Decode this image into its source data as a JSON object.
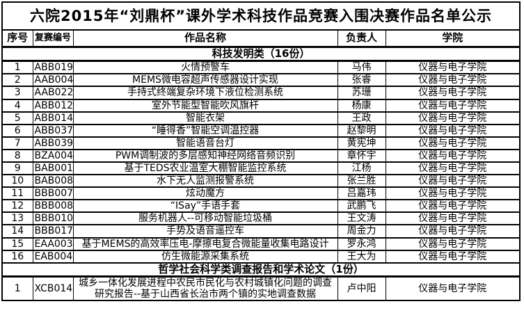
{
  "title": "六院2015年“刘鼎杯”课外学术科技作品竞赛入围决赛作品名单公示",
  "columns": [
    "序号",
    "复赛编号",
    "作品名称",
    "负责人",
    "学院"
  ],
  "sections": [
    {
      "header": "科技发明类（16份）",
      "rows": [
        [
          "1",
          "ABB019",
          "火情预警车",
          "马伟",
          "仪器与电子学院"
        ],
        [
          "2",
          "AAB004",
          "MEMS微电容超声传感器设计实现",
          "张睿",
          "仪器与电子学院"
        ],
        [
          "3",
          "AAB022",
          "手持式终端复杂环境下液位检测系统",
          "苏珊",
          "仪器与电子学院"
        ],
        [
          "4",
          "ABB012",
          "室外节能型智能吹风旗杆",
          "杨康",
          "仪器与电子学院"
        ],
        [
          "5",
          "ABB014",
          "智能衣架",
          "王政",
          "仪器与电子学院"
        ],
        [
          "6",
          "ABB037",
          "“睡得香”智能空调温控器",
          "赵黎明",
          "仪器与电子学院"
        ],
        [
          "7",
          "ABB039",
          "智能语音台灯",
          "黄宪坤",
          "仪器与电子学院"
        ],
        [
          "8",
          "BZA004",
          "PWM调制波的多层感知神经网络音频识别",
          "章怀宇",
          "仪器与电子学院"
        ],
        [
          "9",
          "BAB001",
          "基于TEDS农业温室大棚智能监控系统",
          "江杨",
          "仪器与电子学院"
        ],
        [
          "10",
          "BAB008",
          "水下无人监测报警系统",
          "张兰胜",
          "仪器与电子学院"
        ],
        [
          "11",
          "BBB007",
          "炫动魔方",
          "吕嘉玮",
          "仪器与电子学院"
        ],
        [
          "12",
          "BBB008",
          "“ISay”手语手套",
          "武鹏飞",
          "仪器与电子学院"
        ],
        [
          "13",
          "BBB010",
          "服务机器人--可移动智能垃圾桶",
          "王文涛",
          "仪器与电子学院"
        ],
        [
          "14",
          "BBB017",
          "手势及语音遥控车",
          "周金力",
          "仪器与电子学院"
        ],
        [
          "15",
          "EAA003",
          "基于MEMS的高效率压电-摩擦电复合微能量收集电路设计",
          "罗永鸿",
          "仪器与电子学院"
        ],
        [
          "16",
          "EAB004",
          "仿生微能源采集系统",
          "王大为",
          "仪器与电子学院"
        ]
      ]
    },
    {
      "header": "哲学社会科学类调查报告和学术论文（1份）",
      "rows": [
        [
          "1",
          "XCB014",
          "城乡一体化发展进程中农民市民化与农村城镇化问题的调查研究报告--基于山西省长治市两个镇的实地调查数据",
          "卢中阳",
          "仪器与电子学院"
        ]
      ]
    }
  ],
  "colors": {
    "border": "#000000",
    "background": "#ffffff",
    "text": "#000000"
  }
}
